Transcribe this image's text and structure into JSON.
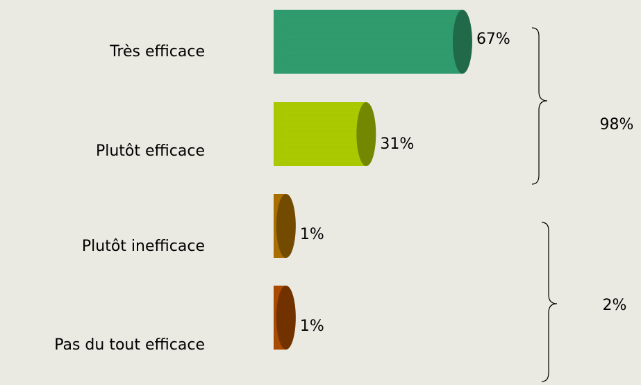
{
  "chart_data": {
    "type": "cylinder-bar",
    "categories": [
      "Très efficace",
      "Plutôt efficace",
      "Plutôt inefficace",
      "Pas du tout efficace"
    ],
    "values": [
      67,
      31,
      1,
      1
    ],
    "value_labels": [
      "67%",
      "31%",
      "1%",
      "1%"
    ],
    "colors": [
      "#2f9a6c",
      "#a9c800",
      "#a86e00",
      "#a84a00"
    ],
    "annotations": [
      {
        "value": 98,
        "label": "98%"
      },
      {
        "value": 2,
        "label": "2%"
      }
    ]
  }
}
